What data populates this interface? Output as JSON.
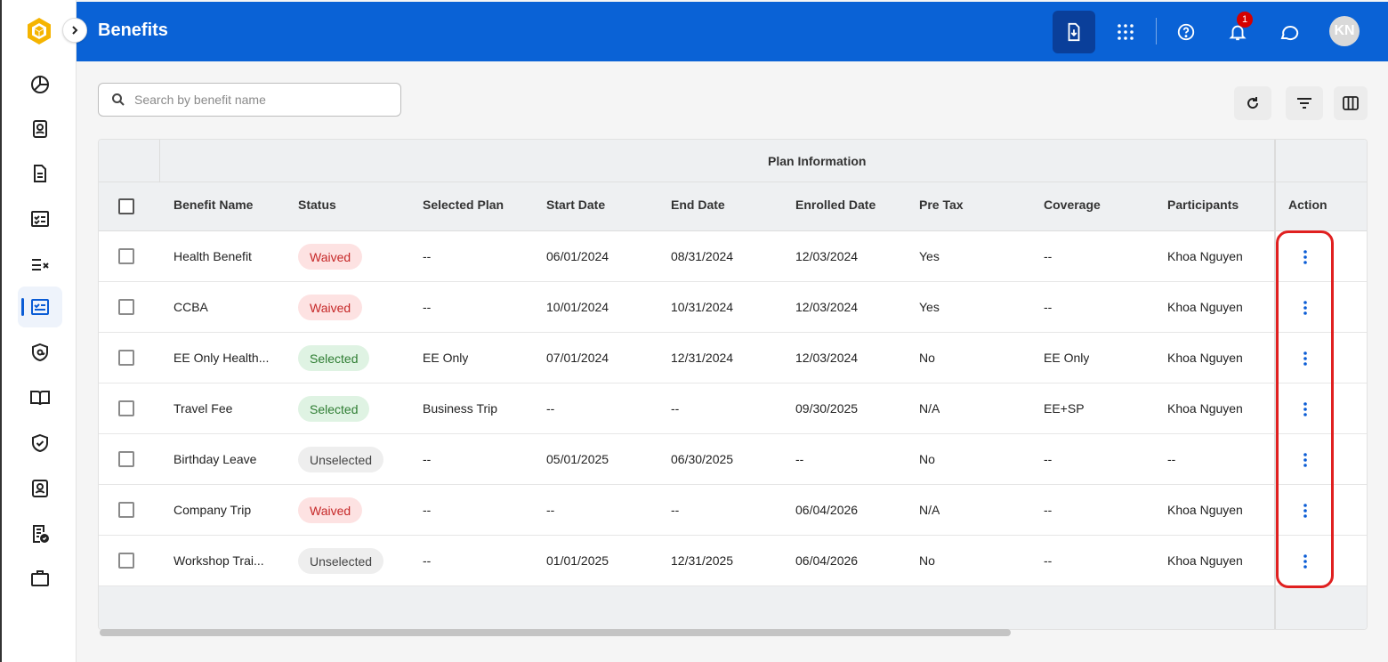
{
  "header": {
    "title": "Benefits",
    "notification_count": "1",
    "avatar_initials": "KN"
  },
  "search": {
    "placeholder": "Search by benefit name"
  },
  "table": {
    "group_header": "Plan Information",
    "columns": [
      "Benefit Name",
      "Status",
      "Selected Plan",
      "Start Date",
      "End Date",
      "Enrolled Date",
      "Pre Tax",
      "Coverage",
      "Participants",
      "Action"
    ],
    "rows": [
      {
        "name": "Health Benefit",
        "status": "Waived",
        "status_type": "waived",
        "plan": "--",
        "start": "06/01/2024",
        "end": "08/31/2024",
        "enrolled": "12/03/2024",
        "pretax": "Yes",
        "coverage": "--",
        "participants": "Khoa Nguyen"
      },
      {
        "name": "CCBA",
        "status": "Waived",
        "status_type": "waived",
        "plan": "--",
        "start": "10/01/2024",
        "end": "10/31/2024",
        "enrolled": "12/03/2024",
        "pretax": "Yes",
        "coverage": "--",
        "participants": "Khoa Nguyen"
      },
      {
        "name": "EE Only Health...",
        "status": "Selected",
        "status_type": "selected",
        "plan": "EE Only",
        "start": "07/01/2024",
        "end": "12/31/2024",
        "enrolled": "12/03/2024",
        "pretax": "No",
        "coverage": "EE Only",
        "participants": "Khoa Nguyen"
      },
      {
        "name": "Travel Fee",
        "status": "Selected",
        "status_type": "selected",
        "plan": "Business Trip",
        "start": "--",
        "end": "--",
        "enrolled": "09/30/2025",
        "pretax": "N/A",
        "coverage": "EE+SP",
        "participants": "Khoa Nguyen"
      },
      {
        "name": "Birthday Leave",
        "status": "Unselected",
        "status_type": "unselected",
        "plan": "--",
        "start": "05/01/2025",
        "end": "06/30/2025",
        "enrolled": "--",
        "pretax": "No",
        "coverage": "--",
        "participants": "--"
      },
      {
        "name": "Company Trip",
        "status": "Waived",
        "status_type": "waived",
        "plan": "--",
        "start": "--",
        "end": "--",
        "enrolled": "06/04/2026",
        "pretax": "N/A",
        "coverage": "--",
        "participants": "Khoa Nguyen"
      },
      {
        "name": "Workshop Trai...",
        "status": "Unselected",
        "status_type": "unselected",
        "plan": "--",
        "start": "01/01/2025",
        "end": "12/31/2025",
        "enrolled": "06/04/2026",
        "pretax": "No",
        "coverage": "--",
        "participants": "Khoa Nguyen"
      }
    ]
  },
  "colors": {
    "header_bg": "#0a62d6",
    "waived": "#c62828",
    "selected": "#2e7d32",
    "highlight": "#e02020"
  },
  "icons": {
    "sidebar": [
      "dashboard-pie-icon",
      "profile-card-icon",
      "document-icon",
      "checklist-icon",
      "task-list-icon",
      "benefits-icon",
      "security-at-icon",
      "handbook-icon",
      "shield-check-icon",
      "id-badge-icon",
      "approved-doc-icon",
      "briefcase-icon"
    ],
    "header": [
      "export-file-icon",
      "apps-grid-icon",
      "help-icon",
      "bell-icon",
      "chat-icon"
    ]
  }
}
